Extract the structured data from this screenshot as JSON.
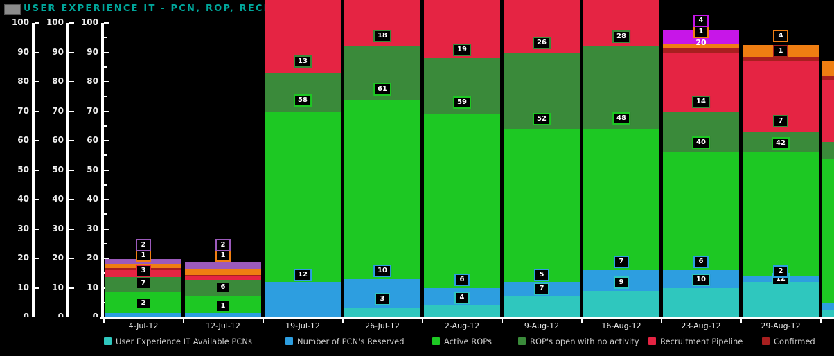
{
  "window": {
    "title": "USER EXPERIENCE IT - PCN, ROP, RECRUITMENT",
    "title_color": "#00a79b",
    "icon": "gray-square"
  },
  "legend": {
    "items": [
      {
        "label": "User Experience IT Available PCNs",
        "series": "available"
      },
      {
        "label": "Number of PCN's Reserved",
        "series": "reserved"
      },
      {
        "label": "Active ROPs",
        "series": "active"
      },
      {
        "label": "ROP's open with no activity",
        "series": "noactivity"
      },
      {
        "label": "Recruitment Pipeline",
        "series": "pipeline"
      },
      {
        "label": "Confirmed",
        "series": "confirmed"
      }
    ]
  },
  "chart_data": {
    "type": "bar",
    "stacked": true,
    "title": "USER EXPERIENCE IT - PCN, ROP, RECRUITMENT",
    "ylim": [
      0,
      100
    ],
    "y_ticks": [
      0,
      10,
      20,
      30,
      40,
      50,
      60,
      70,
      80,
      90,
      100
    ],
    "y_minor_step": 5,
    "grid": false,
    "legend_position": "bottom",
    "categories": [
      "4-Jul-12",
      "12-Jul-12",
      "19-Jul-12",
      "26-Jul-12",
      "2-Aug-12",
      "9-Aug-12",
      "16-Aug-12",
      "23-Aug-12",
      "29-Aug-12"
    ],
    "series_colors": {
      "available": "#2fc7be",
      "reserved": "#2d9ee0",
      "active": "#1dc823",
      "noactivity": "#3a8a3a",
      "pipeline": "#e52443",
      "confirmed": "#a81f1f",
      "orange": "#ef7e12",
      "purple": "#9c5abb",
      "magenta": "#c716e8"
    },
    "bars": [
      {
        "category": "4-Jul-12",
        "segments": [
          [
            "reserved",
            1.5
          ],
          [
            "active",
            7.2
          ],
          [
            "noactivity",
            4.9
          ],
          [
            "pipeline",
            2.4
          ],
          [
            "confirmed",
            0.6
          ],
          [
            "orange",
            1.5
          ],
          [
            "purple",
            1.7
          ]
        ],
        "labels": [
          [
            "2",
            "active",
            4.5
          ],
          [
            "7",
            "noactivity",
            11.3
          ],
          [
            "3",
            "pipeline",
            15.6
          ],
          [
            "1",
            "orange",
            20.6
          ],
          [
            "2",
            "purple",
            24.2
          ]
        ]
      },
      {
        "category": "12-Jul-12",
        "segments": [
          [
            "reserved",
            1.4
          ],
          [
            "active",
            5.9
          ],
          [
            "noactivity",
            5.4
          ],
          [
            "pipeline",
            1.2
          ],
          [
            "confirmed",
            0.5
          ],
          [
            "orange",
            1.9
          ],
          [
            "purple",
            2.5
          ]
        ],
        "labels": [
          [
            "1",
            "active",
            3.5
          ],
          [
            "6",
            "noactivity",
            9.9
          ],
          [
            "1",
            "orange",
            20.6
          ],
          [
            "2",
            "purple",
            24.2
          ]
        ]
      },
      {
        "category": "19-Jul-12",
        "segments": [
          [
            "reserved",
            12
          ],
          [
            "active",
            58
          ],
          [
            "noactivity",
            13
          ],
          [
            "pipeline",
            25
          ]
        ],
        "labels": [
          [
            "12",
            "reserved",
            14.2
          ],
          [
            "58",
            "active",
            73.5
          ],
          [
            "13",
            "noactivity",
            86.5
          ]
        ]
      },
      {
        "category": "26-Jul-12",
        "segments": [
          [
            "available",
            3
          ],
          [
            "reserved",
            10
          ],
          [
            "active",
            61
          ],
          [
            "noactivity",
            18
          ],
          [
            "pipeline",
            16
          ]
        ],
        "labels": [
          [
            "3",
            "available",
            5.9
          ],
          [
            "10",
            "reserved",
            15.5
          ],
          [
            "61",
            "active",
            77.2
          ],
          [
            "18",
            "noactivity",
            95.2
          ]
        ]
      },
      {
        "category": "2-Aug-12",
        "segments": [
          [
            "available",
            4
          ],
          [
            "reserved",
            6
          ],
          [
            "active",
            59
          ],
          [
            "noactivity",
            19
          ],
          [
            "pipeline",
            20
          ]
        ],
        "labels": [
          [
            "4",
            "available",
            6.4
          ],
          [
            "6",
            "reserved",
            12.5
          ],
          [
            "59",
            "active",
            72.8
          ],
          [
            "19",
            "noactivity",
            90.6
          ]
        ]
      },
      {
        "category": "9-Aug-12",
        "segments": [
          [
            "available",
            7
          ],
          [
            "reserved",
            5
          ],
          [
            "active",
            52
          ],
          [
            "noactivity",
            26
          ],
          [
            "pipeline",
            18
          ]
        ],
        "labels": [
          [
            "7",
            "available",
            9.4
          ],
          [
            "5",
            "reserved",
            14.2
          ],
          [
            "52",
            "active",
            67.0
          ],
          [
            "26",
            "noactivity",
            93.0
          ]
        ]
      },
      {
        "category": "16-Aug-12",
        "segments": [
          [
            "available",
            9
          ],
          [
            "reserved",
            7
          ],
          [
            "active",
            48
          ],
          [
            "noactivity",
            28
          ],
          [
            "pipeline",
            16
          ]
        ],
        "labels": [
          [
            "9",
            "available",
            11.5
          ],
          [
            "7",
            "reserved",
            18.5
          ],
          [
            "48",
            "active",
            67.3
          ],
          [
            "28",
            "noactivity",
            95.0
          ]
        ]
      },
      {
        "category": "23-Aug-12",
        "segments": [
          [
            "available",
            10
          ],
          [
            "reserved",
            6
          ],
          [
            "active",
            40
          ],
          [
            "noactivity",
            14
          ],
          [
            "pipeline",
            20
          ],
          [
            "confirmed",
            1.5
          ],
          [
            "orange",
            1.5
          ],
          [
            "magenta",
            4.5
          ]
        ],
        "labels": [
          [
            "10",
            "available",
            12.5
          ],
          [
            "6",
            "reserved",
            18.5
          ],
          [
            "40",
            "active",
            59.0
          ],
          [
            "14",
            "noactivity",
            73.0
          ],
          [
            "20",
            "plain",
            93.4
          ],
          [
            "1",
            "orange",
            96.8
          ],
          [
            "4",
            "magenta",
            100.5
          ]
        ]
      },
      {
        "category": "29-Aug-12",
        "segments": [
          [
            "available",
            12
          ],
          [
            "reserved",
            2
          ],
          [
            "active",
            42
          ],
          [
            "noactivity",
            7
          ],
          [
            "pipeline",
            24
          ],
          [
            "confirmed",
            1.2
          ],
          [
            "orange",
            4.3
          ]
        ],
        "labels": [
          [
            "12",
            "available",
            12.8
          ],
          [
            "2",
            "reserved",
            15.4
          ],
          [
            "42",
            "active",
            58.9
          ],
          [
            "7",
            "noactivity",
            66.4
          ],
          [
            "1",
            "confirmed",
            90.1
          ],
          [
            "4",
            "orange",
            95.3
          ]
        ]
      },
      {
        "category": "",
        "partial": true,
        "segments": [
          [
            "available",
            2.6
          ],
          [
            "reserved",
            2.1
          ],
          [
            "active",
            48.9
          ],
          [
            "noactivity",
            5.9
          ],
          [
            "pipeline",
            21.2
          ],
          [
            "confirmed",
            1.3
          ],
          [
            "orange",
            5
          ]
        ],
        "labels": []
      }
    ]
  }
}
